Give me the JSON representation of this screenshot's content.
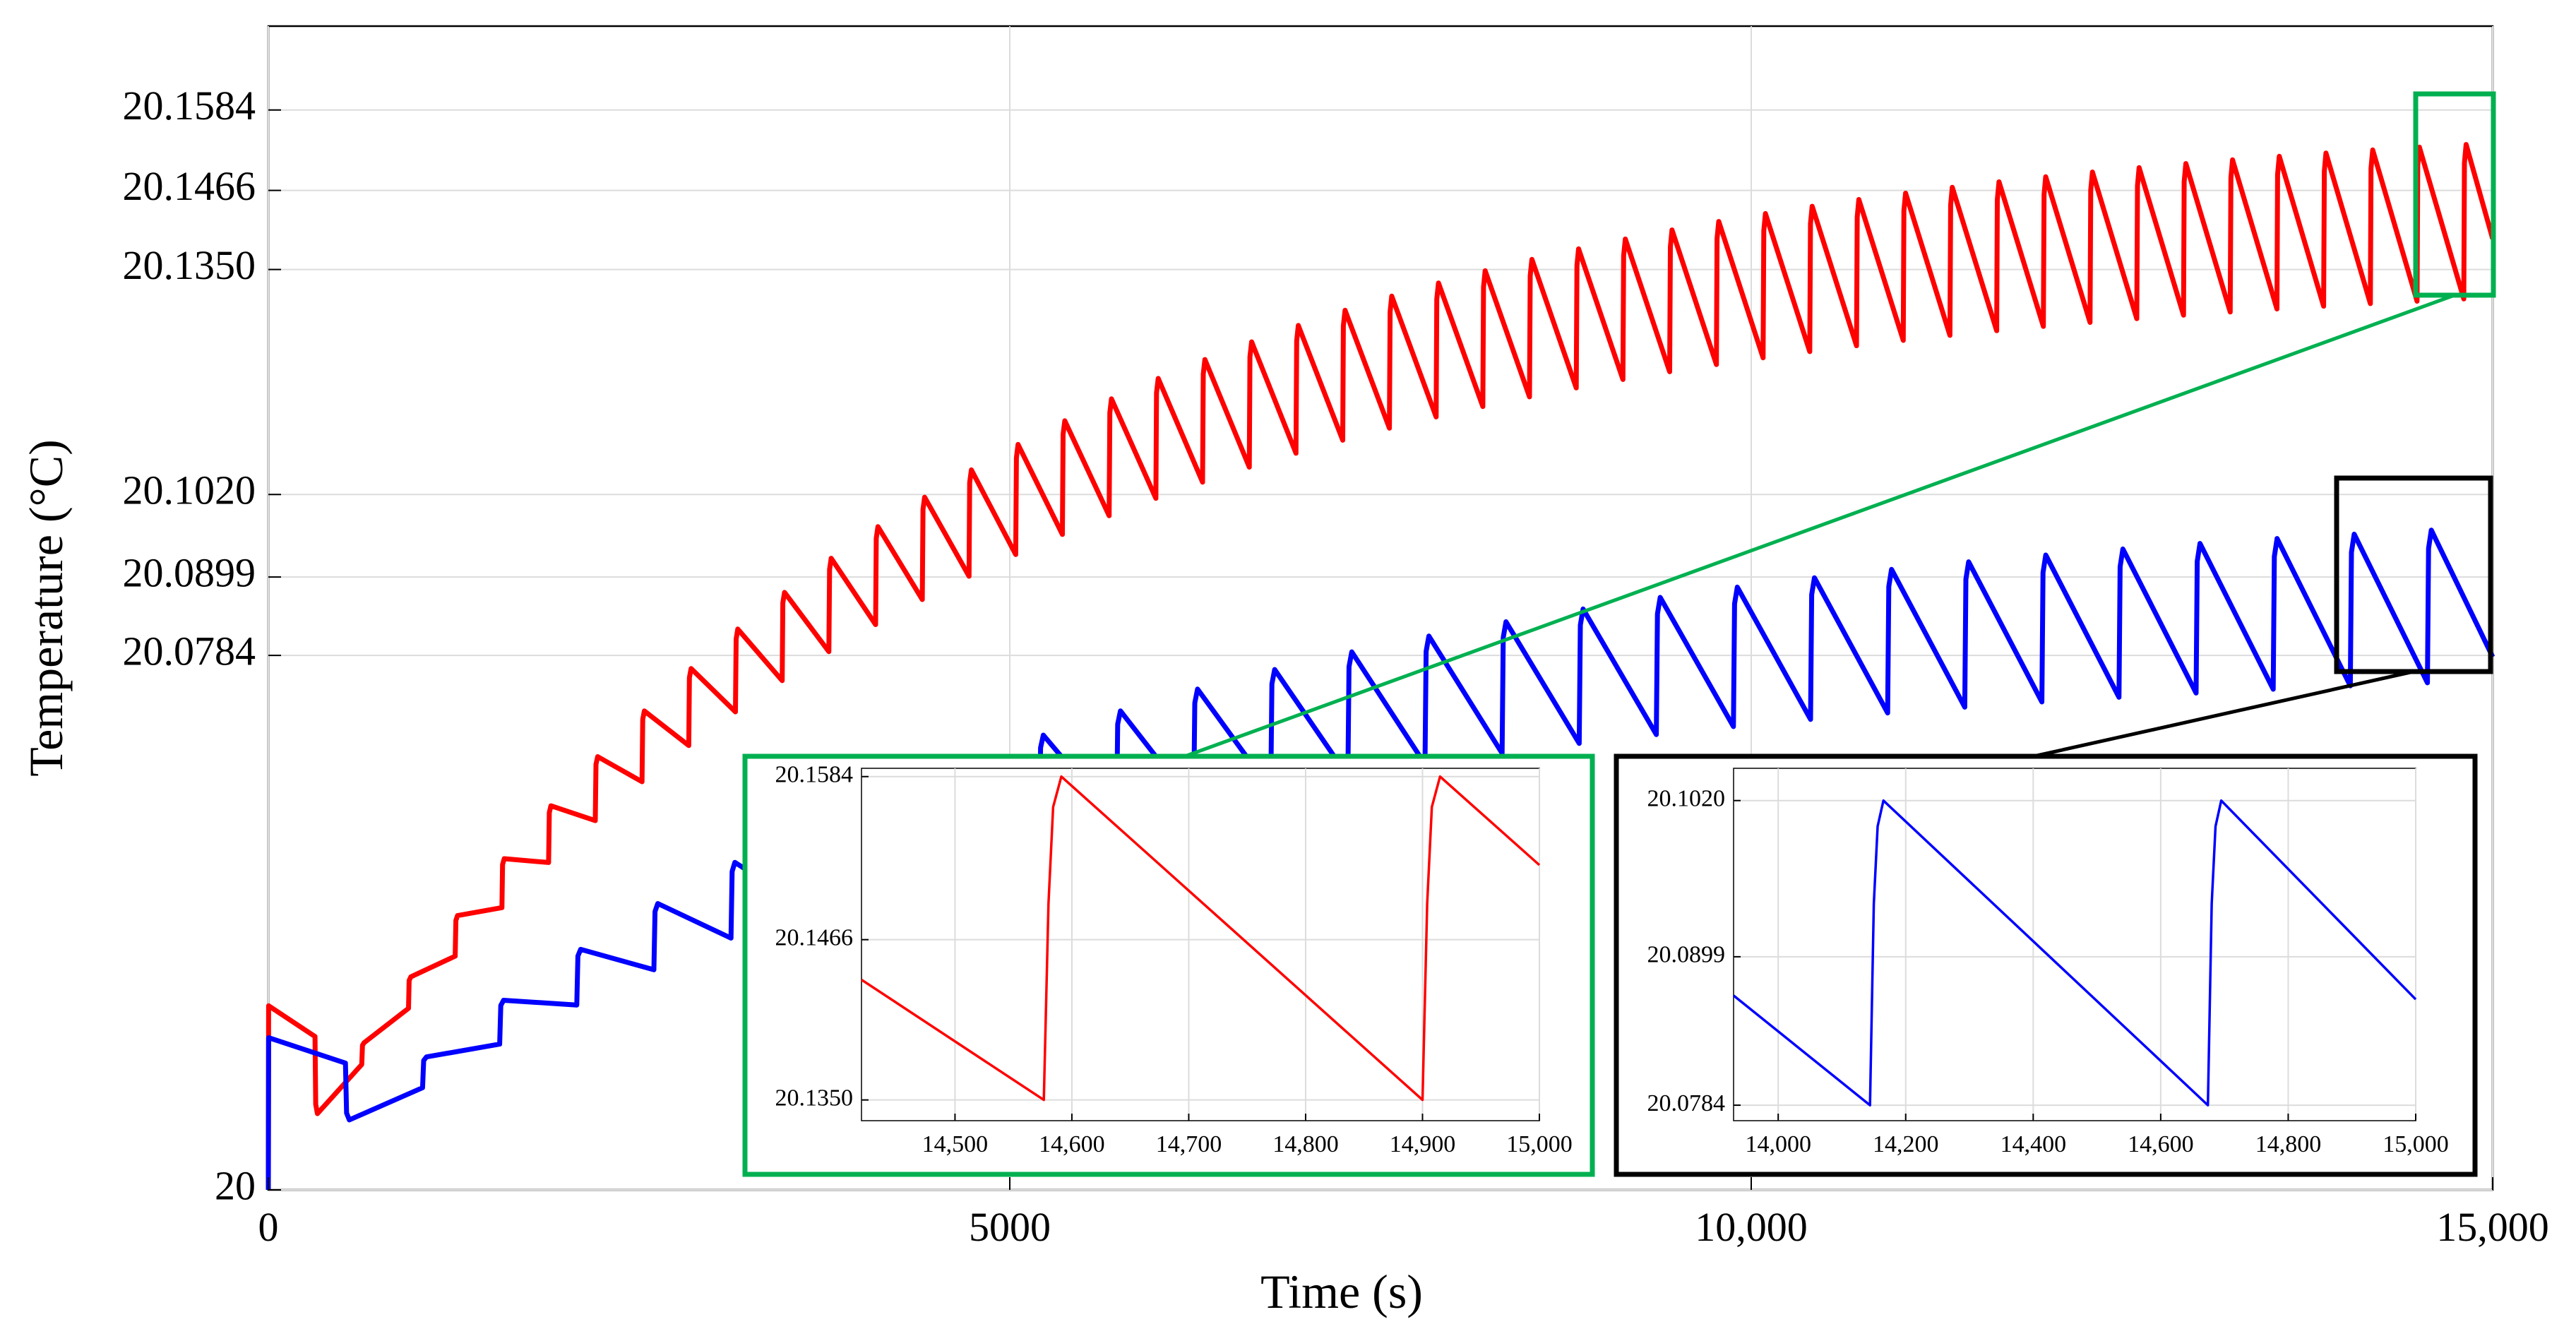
{
  "colors": {
    "red_series": "#ff0000",
    "blue_series": "#0000ff",
    "green_box": "#00b050",
    "black_box": "#000000",
    "grid": "#dcdcdc"
  },
  "chart_data": [
    {
      "id": "main",
      "type": "line",
      "title": "",
      "xlabel": "Time (s)",
      "ylabel": "Temperature (°C)",
      "xlim": [
        0,
        15000
      ],
      "ylim": [
        20,
        20.1707
      ],
      "x_ticks": [
        0,
        5000,
        10000,
        15000
      ],
      "x_tick_labels": [
        "0",
        "5000",
        "10,000",
        "15,000"
      ],
      "y_ticks": [
        20,
        20.0784,
        20.0899,
        20.102,
        20.135,
        20.1466,
        20.1584
      ],
      "y_tick_labels": [
        "20",
        "20.0784",
        "20.0899",
        "20.1020",
        "20.1350",
        "20.1466",
        "20.1584"
      ],
      "grid": true,
      "series": [
        {
          "name": "red",
          "color": "#ff0000",
          "t0": 20,
          "t_start": 0,
          "cycle_period_s": 315,
          "first_cycle_s": 315,
          "first_cycle_end_temp": 20.0225,
          "peak_limit": 20.1584,
          "trough_limit": 20.135,
          "time_constant_s": 4300
        },
        {
          "name": "blue",
          "color": "#0000ff",
          "t0": 20,
          "t_start": 0,
          "cycle_period_s": 520,
          "first_cycle_s": 520,
          "first_cycle_end_temp": 20.0186,
          "peak_limit": 20.102,
          "trough_limit": 20.0784,
          "time_constant_s": 4900
        }
      ]
    },
    {
      "id": "inset-red",
      "type": "line",
      "xlim": [
        14420,
        15000
      ],
      "ylim": [
        20.1335,
        20.159
      ],
      "x_ticks": [
        14500,
        14600,
        14700,
        14800,
        14900,
        15000
      ],
      "x_tick_labels": [
        "14,500",
        "14,600",
        "14,700",
        "14,800",
        "14,900",
        "15,000"
      ],
      "y_ticks": [
        20.135,
        20.1466,
        20.1584
      ],
      "y_tick_labels": [
        "20.1350",
        "20.1466",
        "20.1584"
      ],
      "grid": true,
      "series": [
        {
          "name": "red",
          "color": "#ff0000",
          "points": [
            [
              14420,
              20.1437
            ],
            [
              14576,
              20.135
            ],
            [
              14580,
              20.1492
            ],
            [
              14584,
              20.1562
            ],
            [
              14591,
              20.1584
            ],
            [
              14900,
              20.135
            ],
            [
              14904,
              20.1492
            ],
            [
              14908,
              20.1562
            ],
            [
              14915,
              20.1584
            ],
            [
              15000,
              20.152
            ]
          ]
        }
      ]
    },
    {
      "id": "inset-blue",
      "type": "line",
      "xlim": [
        13930,
        15000
      ],
      "ylim": [
        20.0772,
        20.1045
      ],
      "x_ticks": [
        14000,
        14200,
        14400,
        14600,
        14800,
        15000
      ],
      "x_tick_labels": [
        "14,000",
        "14,200",
        "14,400",
        "14,600",
        "14,800",
        "15,000"
      ],
      "y_ticks": [
        20.0784,
        20.0899,
        20.102
      ],
      "y_tick_labels": [
        "20.0784",
        "20.0899",
        "20.1020"
      ],
      "grid": true,
      "series": [
        {
          "name": "blue",
          "color": "#0000ff",
          "points": [
            [
              13930,
              20.0869
            ],
            [
              14144,
              20.0784
            ],
            [
              14150,
              20.094
            ],
            [
              14156,
              20.1
            ],
            [
              14165,
              20.102
            ],
            [
              14674,
              20.0784
            ],
            [
              14680,
              20.094
            ],
            [
              14686,
              20.1
            ],
            [
              14695,
              20.102
            ],
            [
              15000,
              20.0866
            ]
          ]
        }
      ]
    }
  ]
}
